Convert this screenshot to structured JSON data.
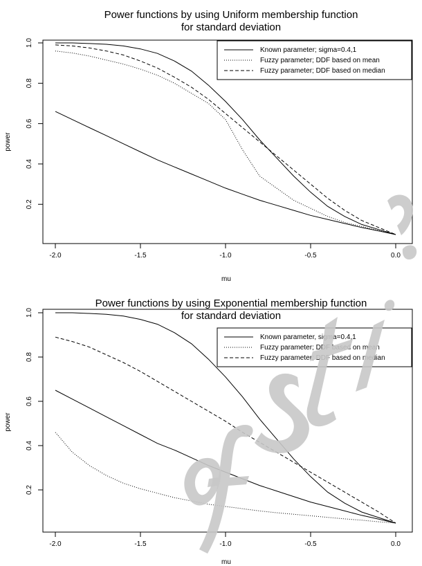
{
  "chart_data": [
    {
      "type": "line",
      "title": [
        "Power functions by using Uniform membership function",
        "for standard deviation"
      ],
      "xlabel": "mu",
      "ylabel": "power",
      "xlim": [
        -2.0,
        0.0
      ],
      "ylim": [
        0.05,
        1.0
      ],
      "xticks": [
        "-2.0",
        "-1.5",
        "-1.0",
        "-0.5",
        "0.0"
      ],
      "yticks": [
        "0.2",
        "0.4",
        "0.6",
        "0.8",
        "1.0"
      ],
      "grid": false,
      "legend_position": "top-right",
      "x": [
        -2.0,
        -1.9,
        -1.8,
        -1.7,
        -1.6,
        -1.5,
        -1.4,
        -1.3,
        -1.2,
        -1.1,
        -1.0,
        -0.9,
        -0.8,
        -0.7,
        -0.6,
        -0.5,
        -0.4,
        -0.3,
        -0.2,
        -0.1,
        0.0
      ],
      "legend": [
        {
          "label": "Known parameter; sigma=0.4,1",
          "style": "solid"
        },
        {
          "label": "Fuzzy parameter; DDF based on mean",
          "style": "dotted"
        },
        {
          "label": "Fuzzy parameter; DDF based on median",
          "style": "dashed"
        }
      ],
      "series": [
        {
          "style": "solid",
          "values": [
            1.0,
            1.0,
            0.997,
            0.993,
            0.985,
            0.97,
            0.948,
            0.91,
            0.86,
            0.79,
            0.71,
            0.62,
            0.52,
            0.43,
            0.34,
            0.26,
            0.19,
            0.14,
            0.1,
            0.075,
            0.05
          ]
        },
        {
          "style": "solid",
          "values": [
            0.66,
            0.62,
            0.58,
            0.54,
            0.5,
            0.46,
            0.42,
            0.385,
            0.35,
            0.315,
            0.28,
            0.25,
            0.22,
            0.195,
            0.17,
            0.145,
            0.125,
            0.105,
            0.085,
            0.068,
            0.05
          ]
        },
        {
          "style": "dotted",
          "values": [
            0.96,
            0.95,
            0.935,
            0.915,
            0.895,
            0.87,
            0.84,
            0.8,
            0.75,
            0.7,
            0.62,
            0.47,
            0.34,
            0.28,
            0.22,
            0.18,
            0.14,
            0.11,
            0.09,
            0.07,
            0.05
          ]
        },
        {
          "style": "dashed",
          "values": [
            0.99,
            0.985,
            0.975,
            0.96,
            0.94,
            0.91,
            0.875,
            0.83,
            0.78,
            0.72,
            0.65,
            0.58,
            0.51,
            0.44,
            0.37,
            0.3,
            0.23,
            0.17,
            0.12,
            0.085,
            0.05
          ]
        }
      ]
    },
    {
      "type": "line",
      "title": [
        "Power functions by using Exponential membership function",
        "for standard deviation"
      ],
      "xlabel": "mu",
      "ylabel": "power",
      "xlim": [
        -2.0,
        0.0
      ],
      "ylim": [
        0.05,
        1.0
      ],
      "xticks": [
        "-2.0",
        "-1.5",
        "-1.0",
        "-0.5",
        "0.0"
      ],
      "yticks": [
        "0.2",
        "0.4",
        "0.6",
        "0.8",
        "1.0"
      ],
      "grid": false,
      "legend_position": "top-right",
      "x": [
        -2.0,
        -1.9,
        -1.8,
        -1.7,
        -1.6,
        -1.5,
        -1.4,
        -1.3,
        -1.2,
        -1.1,
        -1.0,
        -0.9,
        -0.8,
        -0.7,
        -0.6,
        -0.5,
        -0.4,
        -0.3,
        -0.2,
        -0.1,
        0.0
      ],
      "legend": [
        {
          "label": "Known parameter, sigma=0.4,1",
          "style": "solid"
        },
        {
          "label": "Fuzzy parameter; DDF based on mean",
          "style": "dotted"
        },
        {
          "label": "Fuzzy parameter; DDF based on median",
          "style": "dashed"
        }
      ],
      "series": [
        {
          "style": "solid",
          "values": [
            1.0,
            1.0,
            0.997,
            0.993,
            0.985,
            0.97,
            0.948,
            0.91,
            0.86,
            0.79,
            0.71,
            0.62,
            0.52,
            0.43,
            0.34,
            0.26,
            0.19,
            0.14,
            0.1,
            0.075,
            0.05
          ]
        },
        {
          "style": "solid",
          "values": [
            0.65,
            0.61,
            0.57,
            0.53,
            0.49,
            0.45,
            0.41,
            0.38,
            0.345,
            0.31,
            0.28,
            0.25,
            0.22,
            0.195,
            0.17,
            0.145,
            0.125,
            0.105,
            0.085,
            0.068,
            0.05
          ]
        },
        {
          "style": "dotted",
          "values": [
            0.46,
            0.37,
            0.31,
            0.265,
            0.23,
            0.205,
            0.185,
            0.165,
            0.15,
            0.135,
            0.125,
            0.115,
            0.105,
            0.097,
            0.09,
            0.083,
            0.076,
            0.069,
            0.063,
            0.056,
            0.05
          ]
        },
        {
          "style": "dashed",
          "values": [
            0.89,
            0.87,
            0.845,
            0.81,
            0.775,
            0.735,
            0.69,
            0.645,
            0.6,
            0.555,
            0.51,
            0.46,
            0.415,
            0.37,
            0.325,
            0.28,
            0.235,
            0.19,
            0.145,
            0.1,
            0.05
          ]
        }
      ]
    }
  ]
}
